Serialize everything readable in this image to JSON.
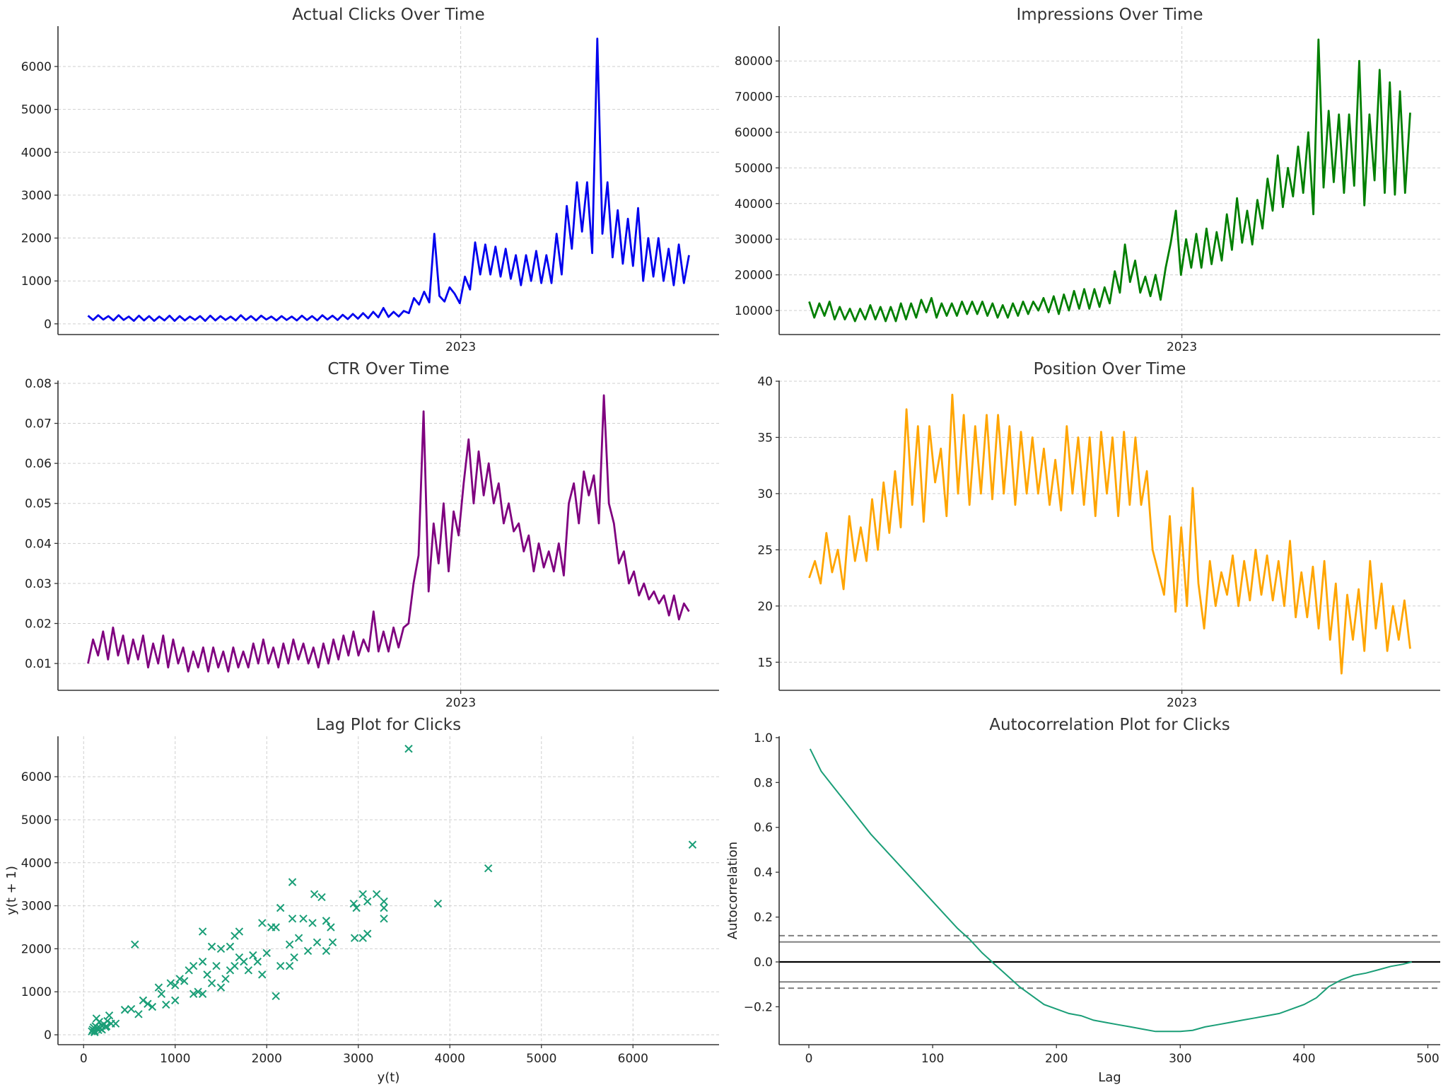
{
  "chart_data": [
    {
      "id": "clicks",
      "type": "line",
      "title": "Actual Clicks Over Time",
      "xlabel": "",
      "ylabel": "",
      "color": "#0000ee",
      "x_range": [
        "2022-03-05",
        "2023-07-05"
      ],
      "x_ticks": [
        {
          "label": "2023",
          "date": "2023-01-01"
        }
      ],
      "ylim": [
        -250,
        6940
      ],
      "y_ticks": [
        0,
        1000,
        2000,
        3000,
        4000,
        5000,
        6000
      ],
      "grid": true,
      "values": [
        190,
        90,
        200,
        100,
        180,
        80,
        200,
        90,
        170,
        70,
        190,
        80,
        180,
        70,
        170,
        80,
        190,
        70,
        180,
        80,
        170,
        90,
        180,
        70,
        190,
        80,
        180,
        90,
        170,
        80,
        200,
        90,
        180,
        80,
        190,
        100,
        170,
        80,
        180,
        90,
        170,
        80,
        190,
        90,
        180,
        80,
        200,
        100,
        190,
        90,
        210,
        110,
        230,
        120,
        250,
        130,
        280,
        150,
        370,
        160,
        280,
        170,
        300,
        250,
        600,
        450,
        750,
        500,
        2100,
        650,
        520,
        850,
        700,
        480,
        1100,
        800,
        1900,
        1150,
        1850,
        1150,
        1800,
        1100,
        1750,
        1050,
        1600,
        900,
        1600,
        1000,
        1700,
        950,
        1600,
        950,
        2100,
        1150,
        2750,
        1750,
        3300,
        2150,
        3300,
        1650,
        6650,
        2100,
        3300,
        1550,
        2650,
        1400,
        2450,
        1350,
        2700,
        1000,
        2000,
        1100,
        2000,
        1000,
        1750,
        900,
        1850,
        950,
        1600
      ]
    },
    {
      "id": "impressions",
      "type": "line",
      "title": "Impressions Over Time",
      "xlabel": "",
      "ylabel": "",
      "color": "#007f00",
      "x_range": [
        "2022-03-05",
        "2023-07-05"
      ],
      "x_ticks": [
        {
          "label": "2023",
          "date": "2023-01-01"
        }
      ],
      "ylim": [
        3250,
        89760
      ],
      "y_ticks": [
        10000,
        20000,
        30000,
        40000,
        50000,
        60000,
        70000,
        80000
      ],
      "grid": true,
      "values": [
        12500,
        8000,
        12000,
        8500,
        12500,
        7500,
        11000,
        7500,
        10500,
        7000,
        10500,
        7500,
        11500,
        7500,
        11000,
        7000,
        11000,
        7000,
        12000,
        7500,
        12000,
        8000,
        13000,
        9500,
        13500,
        8000,
        12000,
        8500,
        12000,
        8500,
        12500,
        9000,
        12500,
        9000,
        12500,
        8500,
        12000,
        8000,
        11500,
        8000,
        12000,
        8500,
        12500,
        9000,
        12500,
        10000,
        13500,
        9500,
        14000,
        9000,
        14500,
        10000,
        15500,
        10500,
        16000,
        10500,
        16000,
        11000,
        16500,
        12000,
        21000,
        15000,
        28500,
        18000,
        24000,
        15000,
        19500,
        14000,
        20000,
        13000,
        22000,
        29000,
        38000,
        20000,
        30000,
        22000,
        31500,
        22000,
        33000,
        23000,
        32000,
        24000,
        37000,
        27000,
        41500,
        29000,
        38000,
        28500,
        41000,
        33000,
        47000,
        38000,
        53500,
        39000,
        50000,
        42000,
        56000,
        43000,
        60000,
        37000,
        86000,
        44500,
        66000,
        46000,
        65000,
        43000,
        65000,
        45000,
        80000,
        39500,
        65000,
        46500,
        77500,
        43000,
        74000,
        42500,
        71500,
        43000,
        65500
      ]
    },
    {
      "id": "ctr",
      "type": "line",
      "title": "CTR Over Time",
      "xlabel": "",
      "ylabel": "",
      "color": "#7f007f",
      "x_range": [
        "2022-03-05",
        "2023-07-05"
      ],
      "x_ticks": [
        {
          "label": "2023",
          "date": "2023-01-01"
        }
      ],
      "ylim": [
        0.0033,
        0.0807
      ],
      "y_ticks": [
        0.01,
        0.02,
        0.03,
        0.04,
        0.05,
        0.06,
        0.07,
        0.08
      ],
      "grid": true,
      "values": [
        0.01,
        0.016,
        0.012,
        0.018,
        0.011,
        0.019,
        0.012,
        0.017,
        0.01,
        0.016,
        0.011,
        0.017,
        0.009,
        0.015,
        0.01,
        0.017,
        0.009,
        0.016,
        0.01,
        0.014,
        0.008,
        0.013,
        0.009,
        0.014,
        0.008,
        0.014,
        0.009,
        0.013,
        0.008,
        0.014,
        0.009,
        0.013,
        0.009,
        0.015,
        0.01,
        0.016,
        0.01,
        0.014,
        0.009,
        0.015,
        0.01,
        0.016,
        0.011,
        0.015,
        0.01,
        0.014,
        0.009,
        0.015,
        0.01,
        0.016,
        0.011,
        0.017,
        0.012,
        0.018,
        0.012,
        0.016,
        0.013,
        0.023,
        0.013,
        0.018,
        0.013,
        0.019,
        0.014,
        0.019,
        0.02,
        0.03,
        0.037,
        0.073,
        0.028,
        0.045,
        0.035,
        0.05,
        0.033,
        0.048,
        0.042,
        0.055,
        0.066,
        0.05,
        0.063,
        0.052,
        0.06,
        0.05,
        0.055,
        0.045,
        0.05,
        0.043,
        0.045,
        0.038,
        0.042,
        0.033,
        0.04,
        0.034,
        0.038,
        0.033,
        0.04,
        0.032,
        0.05,
        0.055,
        0.045,
        0.058,
        0.052,
        0.057,
        0.045,
        0.077,
        0.05,
        0.045,
        0.035,
        0.038,
        0.03,
        0.033,
        0.027,
        0.03,
        0.026,
        0.028,
        0.025,
        0.027,
        0.022,
        0.027,
        0.021,
        0.025,
        0.023
      ]
    },
    {
      "id": "position",
      "type": "line",
      "title": "Position Over Time",
      "xlabel": "",
      "ylabel": "",
      "color": "#ffa500",
      "x_range": [
        "2022-03-05",
        "2023-07-05"
      ],
      "x_ticks": [
        {
          "label": "2023",
          "date": "2023-01-01"
        }
      ],
      "ylim": [
        12.5,
        40.06
      ],
      "y_ticks": [
        15,
        20,
        25,
        30,
        35,
        40
      ],
      "grid": true,
      "values": [
        22.5,
        24,
        22,
        26.5,
        23,
        25,
        21.5,
        28,
        24,
        27,
        24,
        29.5,
        25,
        31,
        26.5,
        32,
        27,
        37.5,
        29,
        36,
        27.5,
        36,
        31,
        34,
        28,
        38.8,
        30,
        37,
        29,
        36,
        30,
        37,
        29.5,
        37,
        30,
        36,
        29,
        35.5,
        30,
        35,
        30,
        34,
        29,
        33,
        28.5,
        36,
        30,
        35,
        29,
        35,
        28,
        35.5,
        30,
        35,
        28,
        35.5,
        29,
        35,
        29,
        32,
        25,
        23,
        21,
        28,
        19.5,
        27,
        20,
        30.5,
        22,
        18,
        24,
        20,
        23,
        21,
        24.5,
        20,
        24,
        20.5,
        25,
        21,
        24.5,
        20.5,
        24,
        20,
        25.8,
        19,
        23,
        19,
        23.5,
        18,
        24,
        17,
        22,
        14,
        21,
        17,
        21.5,
        16,
        24,
        18,
        22,
        16,
        20,
        17,
        20.5,
        16.2
      ]
    },
    {
      "id": "lag",
      "type": "scatter",
      "title": "Lag Plot for Clicks",
      "xlabel": "y(t)",
      "ylabel": "y(t + 1)",
      "color": "#1a9e77",
      "marker": "x",
      "xlim": [
        -280,
        6940
      ],
      "ylim": [
        -230,
        6940
      ],
      "x_ticks": [
        0,
        1000,
        2000,
        3000,
        4000,
        5000,
        6000
      ],
      "y_ticks": [
        0,
        1000,
        2000,
        3000,
        4000,
        5000,
        6000
      ],
      "grid": true,
      "points": [
        [
          100,
          120
        ],
        [
          120,
          90
        ],
        [
          150,
          160
        ],
        [
          130,
          200
        ],
        [
          180,
          150
        ],
        [
          200,
          210
        ],
        [
          90,
          80
        ],
        [
          160,
          110
        ],
        [
          110,
          170
        ],
        [
          220,
          250
        ],
        [
          250,
          200
        ],
        [
          170,
          300
        ],
        [
          140,
          380
        ],
        [
          280,
          450
        ],
        [
          300,
          260
        ],
        [
          350,
          260
        ],
        [
          200,
          120
        ],
        [
          240,
          180
        ],
        [
          260,
          320
        ],
        [
          120,
          60
        ],
        [
          450,
          580
        ],
        [
          520,
          600
        ],
        [
          600,
          480
        ],
        [
          650,
          800
        ],
        [
          700,
          720
        ],
        [
          750,
          650
        ],
        [
          820,
          1100
        ],
        [
          850,
          950
        ],
        [
          900,
          700
        ],
        [
          950,
          1200
        ],
        [
          1000,
          800
        ],
        [
          1000,
          1150
        ],
        [
          1050,
          1300
        ],
        [
          1100,
          1250
        ],
        [
          1150,
          1500
        ],
        [
          1200,
          1600
        ],
        [
          1200,
          950
        ],
        [
          1250,
          1000
        ],
        [
          1300,
          1700
        ],
        [
          1300,
          950
        ],
        [
          1300,
          2400
        ],
        [
          1350,
          1400
        ],
        [
          1400,
          2050
        ],
        [
          1400,
          1200
        ],
        [
          1450,
          1600
        ],
        [
          1500,
          2000
        ],
        [
          1500,
          1100
        ],
        [
          1550,
          1300
        ],
        [
          1600,
          1500
        ],
        [
          1600,
          2050
        ],
        [
          1650,
          1600
        ],
        [
          1650,
          2300
        ],
        [
          1700,
          1800
        ],
        [
          1700,
          2400
        ],
        [
          1750,
          1700
        ],
        [
          1800,
          1500
        ],
        [
          1850,
          1850
        ],
        [
          1900,
          1700
        ],
        [
          1950,
          2600
        ],
        [
          1950,
          1400
        ],
        [
          2000,
          1900
        ],
        [
          2050,
          2500
        ],
        [
          2100,
          2500
        ],
        [
          2100,
          900
        ],
        [
          2150,
          1600
        ],
        [
          2150,
          2950
        ],
        [
          2250,
          2100
        ],
        [
          2250,
          1600
        ],
        [
          2280,
          2700
        ],
        [
          2280,
          3550
        ],
        [
          2300,
          1800
        ],
        [
          2350,
          2250
        ],
        [
          2400,
          2700
        ],
        [
          2450,
          1950
        ],
        [
          2500,
          2600
        ],
        [
          2520,
          3270
        ],
        [
          2550,
          2150
        ],
        [
          2600,
          3200
        ],
        [
          2650,
          1950
        ],
        [
          2650,
          2650
        ],
        [
          2700,
          2500
        ],
        [
          2720,
          2150
        ],
        [
          2950,
          3050
        ],
        [
          2960,
          2250
        ],
        [
          2980,
          2950
        ],
        [
          3050,
          3270
        ],
        [
          3050,
          2250
        ],
        [
          3100,
          3100
        ],
        [
          3100,
          2350
        ],
        [
          3200,
          3270
        ],
        [
          3280,
          3100
        ],
        [
          3280,
          2700
        ],
        [
          3280,
          2950
        ],
        [
          3550,
          6650
        ],
        [
          3870,
          3050
        ],
        [
          4420,
          3870
        ],
        [
          6650,
          4420
        ],
        [
          560,
          2100
        ]
      ]
    },
    {
      "id": "acf",
      "type": "line",
      "title": "Autocorrelation Plot for Clicks",
      "xlabel": "Lag",
      "ylabel": "Autocorrelation",
      "color": "#1a9e77",
      "xlim": [
        -24,
        510
      ],
      "ylim": [
        -0.369,
        1.006
      ],
      "x_ticks": [
        0,
        100,
        200,
        300,
        400,
        500
      ],
      "y_ticks": [
        -0.2,
        0.0,
        0.2,
        0.4,
        0.6,
        0.8,
        1.0
      ],
      "grid": false,
      "confidence_95": 0.089,
      "confidence_99": 0.117,
      "lags": [
        1,
        10,
        20,
        30,
        40,
        50,
        60,
        70,
        80,
        90,
        100,
        110,
        120,
        130,
        140,
        150,
        160,
        170,
        180,
        190,
        200,
        210,
        220,
        230,
        240,
        250,
        260,
        270,
        280,
        290,
        300,
        310,
        320,
        330,
        340,
        350,
        360,
        370,
        380,
        390,
        400,
        410,
        420,
        430,
        440,
        450,
        460,
        470,
        480,
        487
      ],
      "values": [
        0.95,
        0.85,
        0.78,
        0.71,
        0.64,
        0.57,
        0.51,
        0.45,
        0.39,
        0.33,
        0.27,
        0.21,
        0.15,
        0.1,
        0.04,
        -0.01,
        -0.06,
        -0.11,
        -0.15,
        -0.19,
        -0.21,
        -0.23,
        -0.24,
        -0.26,
        -0.27,
        -0.28,
        -0.29,
        -0.3,
        -0.31,
        -0.31,
        -0.31,
        -0.305,
        -0.29,
        -0.28,
        -0.27,
        -0.26,
        -0.25,
        -0.24,
        -0.23,
        -0.21,
        -0.19,
        -0.16,
        -0.11,
        -0.08,
        -0.06,
        -0.05,
        -0.035,
        -0.02,
        -0.01,
        0.0
      ]
    }
  ]
}
